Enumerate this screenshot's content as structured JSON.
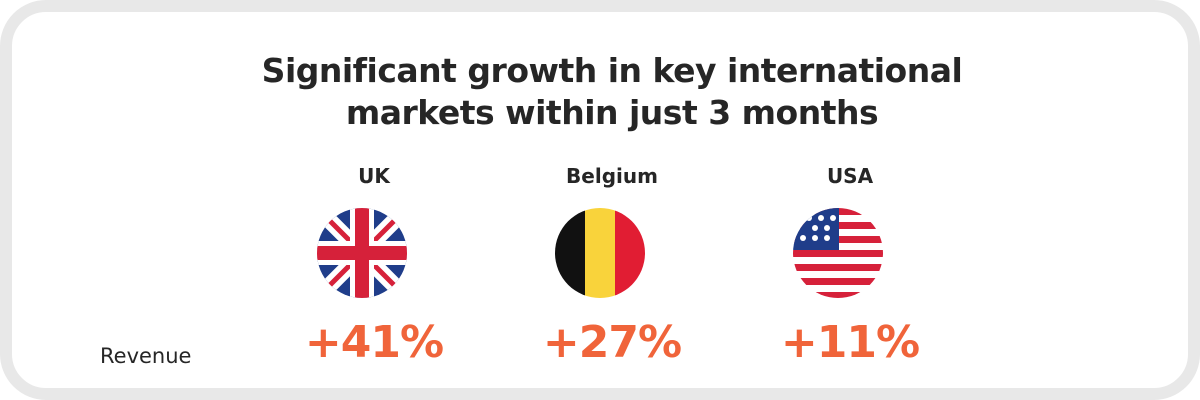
{
  "title": "Significant growth in key international markets within just 3 months",
  "row_label": "Revenue",
  "markets": [
    {
      "name": "UK",
      "growth": "+41%"
    },
    {
      "name": "Belgium",
      "growth": "+27%"
    },
    {
      "name": "USA",
      "growth": "+11%"
    }
  ]
}
